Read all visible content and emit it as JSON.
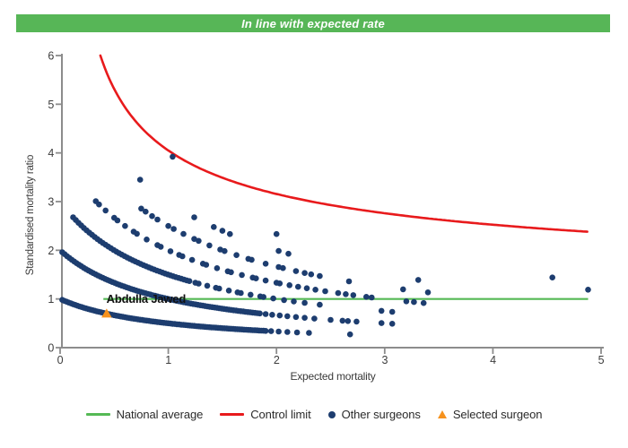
{
  "header": {
    "title": "In line with expected rate",
    "bg": "#57b657",
    "text_color": "#ffffff"
  },
  "chart_data": {
    "type": "scatter",
    "title": "",
    "xlabel": "Expected mortality",
    "ylabel": "Standardised mortality ratio",
    "xlim": [
      0,
      5
    ],
    "ylim": [
      0,
      6
    ],
    "x_ticks": [
      0,
      1,
      2,
      3,
      4,
      5
    ],
    "y_ticks": [
      0,
      1,
      2,
      3,
      4,
      5,
      6
    ],
    "grid": false,
    "axis_color": "#8c8c8c",
    "tick_label_color": "#3d3d3d",
    "axis_title_color": "#3a3a3a",
    "national_average": {
      "label": "National average",
      "y": 1,
      "x_start": 0.4,
      "x_end": 4.88,
      "color": "#55b955"
    },
    "control_limit": {
      "label": "Control limit",
      "curve": "y = baseline + k / sqrt(x), clipped at ymax",
      "baseline": 1,
      "k": 3.05,
      "x_start": 0.3721,
      "x_end": 4.88,
      "color": "#e81a1c"
    },
    "other_surgeons": {
      "label": "Other surgeons",
      "marker": "circle",
      "color": "#1d3d6f",
      "band_model": "points lie on y = deaths / (x + 1); dense = [xFrom, xTo, xStep], xs = individual points",
      "bands": [
        {
          "deaths": 1,
          "dense": [
            0.02,
            1.9,
            0.02
          ],
          "xs": [
            1.95,
            2.02,
            2.1,
            2.19,
            2.3,
            2.68
          ]
        },
        {
          "deaths": 2,
          "dense": [
            0.02,
            1.85,
            0.022
          ],
          "xs": [
            1.9,
            1.96,
            2.03,
            2.1,
            2.18,
            2.26,
            2.35,
            2.5,
            2.61,
            2.66,
            2.74,
            2.97,
            3.07
          ]
        },
        {
          "deaths": 3,
          "dense": [
            0.12,
            1.2,
            0.025
          ],
          "xs": [
            1.25,
            1.28,
            1.36,
            1.44,
            1.47,
            1.56,
            1.64,
            1.67,
            1.76,
            1.85,
            1.88,
            1.97,
            2.07,
            2.16,
            2.26,
            2.4,
            2.97,
            3.07
          ]
        },
        {
          "deaths": 4,
          "xs": [
            0.33,
            0.36,
            0.42,
            0.5,
            0.53,
            0.6,
            0.68,
            0.71,
            0.8,
            0.9,
            0.93,
            1.02,
            1.1,
            1.13,
            1.22,
            1.32,
            1.35,
            1.45,
            1.55,
            1.58,
            1.68,
            1.78,
            1.81,
            1.9,
            2.0,
            2.03,
            2.12,
            2.2,
            2.28,
            2.36,
            2.45,
            2.57,
            2.64,
            2.71,
            2.83,
            2.88,
            3.2,
            3.27,
            3.36
          ]
        },
        {
          "deaths": 5,
          "xs": [
            0.75,
            0.79,
            0.85,
            0.9,
            1.0,
            1.05,
            1.14,
            1.24,
            1.28,
            1.38,
            1.48,
            1.52,
            1.63,
            1.74,
            1.77,
            1.9,
            2.02,
            2.06,
            2.18,
            2.26,
            2.32,
            2.4,
            2.67,
            3.17,
            3.4
          ]
        },
        {
          "deaths": 6,
          "xs": [
            0.74,
            1.24,
            1.42,
            1.5,
            1.57,
            2.02,
            2.11,
            3.31
          ]
        },
        {
          "deaths": 7,
          "xs": [
            2.0,
            4.88
          ]
        },
        {
          "deaths": 8,
          "xs": [
            1.04,
            4.55
          ]
        }
      ]
    },
    "selected_surgeon": {
      "label": "Selected surgeon",
      "name": "Abdulla Jawed",
      "marker": "triangle",
      "x": 0.43,
      "y": 0.7,
      "color": "#f6921e",
      "name_label_x": 0.42,
      "name_label_y": 1.0,
      "name_label_color": "#111111"
    }
  },
  "legend": {
    "items": [
      {
        "label": "National average",
        "marker": "line",
        "color": "#55b955"
      },
      {
        "label": "Control limit",
        "marker": "line",
        "color": "#e81a1c"
      },
      {
        "label": "Other surgeons",
        "marker": "dot",
        "color": "#1d3d6f"
      },
      {
        "label": "Selected surgeon",
        "marker": "triangle",
        "color": "#f6921e"
      }
    ]
  }
}
